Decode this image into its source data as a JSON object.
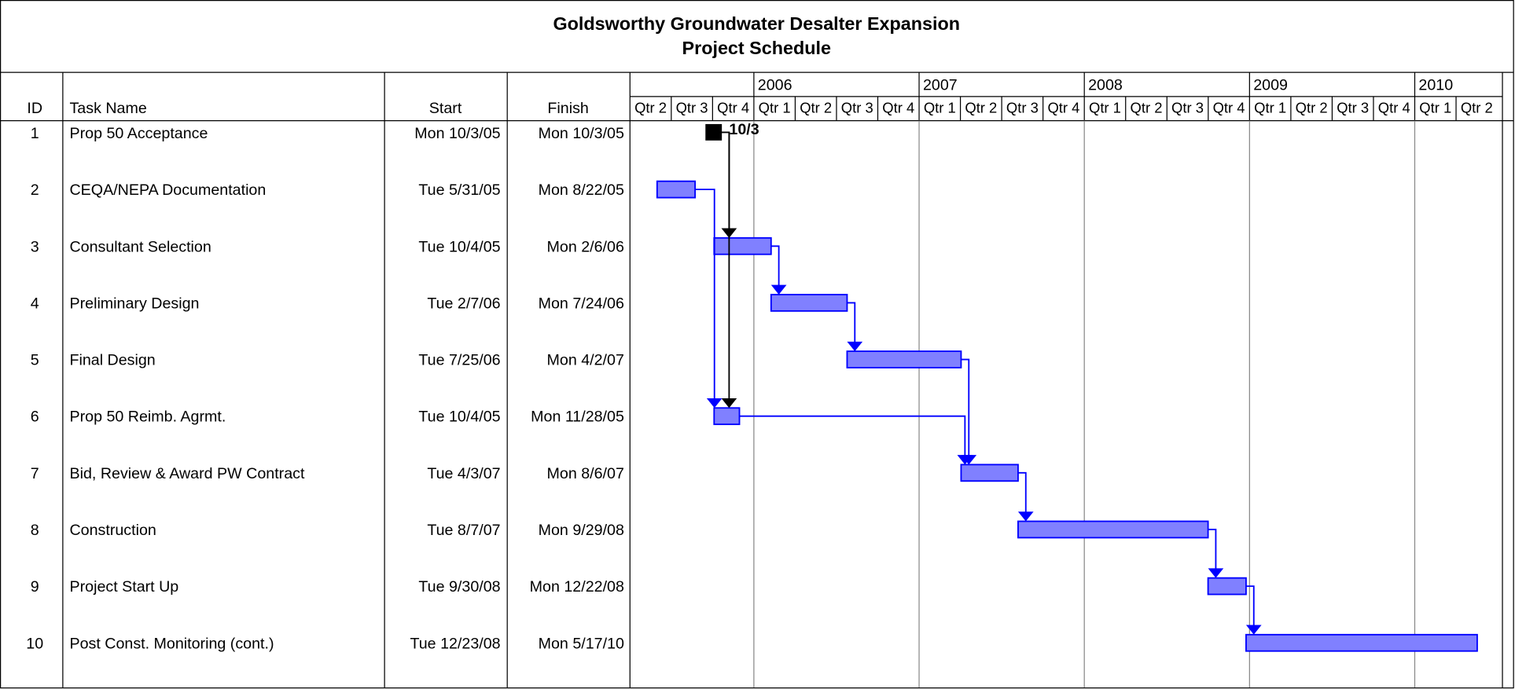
{
  "header": {
    "title": "Goldsworthy Groundwater Desalter Expansion",
    "subtitle": "Project Schedule"
  },
  "columns": {
    "id": "ID",
    "name": "Task Name",
    "start": "Start",
    "finish": "Finish"
  },
  "timeline": {
    "years": [
      "2006",
      "2007",
      "2008",
      "2009",
      "2010"
    ],
    "quarters": [
      "Qtr 2",
      "Qtr 3",
      "Qtr 4",
      "Qtr 1",
      "Qtr 2",
      "Qtr 3",
      "Qtr 4",
      "Qtr 1",
      "Qtr 2",
      "Qtr 3",
      "Qtr 4",
      "Qtr 1",
      "Qtr 2",
      "Qtr 3",
      "Qtr 4",
      "Qtr 1",
      "Qtr 2",
      "Qtr 3",
      "Qtr 4",
      "Qtr 1",
      "Qtr 2"
    ]
  },
  "tasks": [
    {
      "id": "1",
      "name": "Prop 50 Acceptance",
      "start": "Mon 10/3/05",
      "finish": "Mon 10/3/05",
      "label": "10/3"
    },
    {
      "id": "2",
      "name": "CEQA/NEPA Documentation",
      "start": "Tue 5/31/05",
      "finish": "Mon 8/22/05"
    },
    {
      "id": "3",
      "name": "Consultant Selection",
      "start": "Tue 10/4/05",
      "finish": "Mon 2/6/06"
    },
    {
      "id": "4",
      "name": "Preliminary Design",
      "start": "Tue 2/7/06",
      "finish": "Mon 7/24/06"
    },
    {
      "id": "5",
      "name": "Final Design",
      "start": "Tue 7/25/06",
      "finish": "Mon 4/2/07"
    },
    {
      "id": "6",
      "name": "Prop 50 Reimb. Agrmt.",
      "start": "Tue 10/4/05",
      "finish": "Mon 11/28/05"
    },
    {
      "id": "7",
      "name": "Bid, Review & Award PW Contract",
      "start": "Tue 4/3/07",
      "finish": "Mon 8/6/07"
    },
    {
      "id": "8",
      "name": "Construction",
      "start": "Tue 8/7/07",
      "finish": "Mon 9/29/08"
    },
    {
      "id": "9",
      "name": "Project Start Up",
      "start": "Tue 9/30/08",
      "finish": "Mon 12/22/08"
    },
    {
      "id": "10",
      "name": "Post Const. Monitoring (cont.)",
      "start": "Tue 12/23/08",
      "finish": "Mon 5/17/10"
    }
  ]
}
